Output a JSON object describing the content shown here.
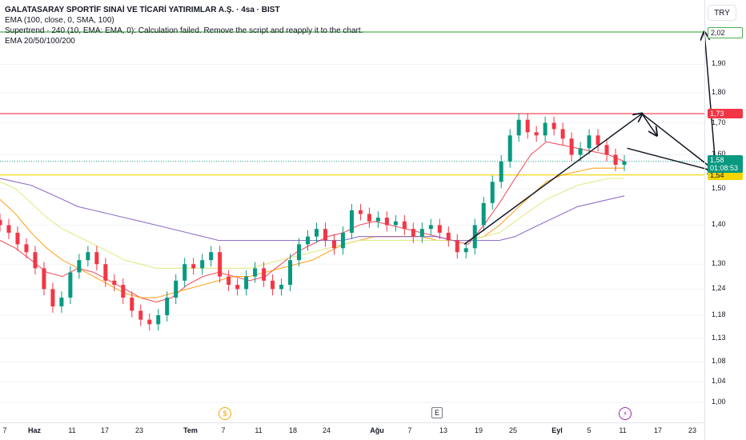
{
  "header": {
    "title": "GALATASARAY SPORTİF SINAİ VE TİCARİ YATIRIMLAR A.Ş. · 4sa · BIST",
    "indicator_ema": "EMA (100, close, 0, SMA, 100)",
    "indicator_supertrend": "Supertrend · 240 (10, EMA: EMA, 0): Calculation failed. Remove the script and reapply it to the chart.",
    "indicator_ema_multi": "EMA 20/50/100/200",
    "currency": "TRY"
  },
  "chart_data": {
    "type": "line",
    "y_axis": {
      "scale": "log",
      "ylim": [
        0.98,
        2.05
      ],
      "ticks": [
        "2,02",
        "1,90",
        "1,80",
        "1,70",
        "1,60",
        "1,50",
        "1,40",
        "1,30",
        "1,24",
        "1,18",
        "1,13",
        "1,08",
        "1,04",
        "1,00"
      ]
    },
    "x_axis": {
      "ticks": [
        {
          "label": "7",
          "bold": false
        },
        {
          "label": "Haz",
          "bold": true
        },
        {
          "label": "11",
          "bold": false
        },
        {
          "label": "17",
          "bold": false
        },
        {
          "label": "23",
          "bold": false
        },
        {
          "label": "Tem",
          "bold": true
        },
        {
          "label": "7",
          "bold": false
        },
        {
          "label": "11",
          "bold": false
        },
        {
          "label": "18",
          "bold": false
        },
        {
          "label": "24",
          "bold": false
        },
        {
          "label": "Ağu",
          "bold": true
        },
        {
          "label": "7",
          "bold": false
        },
        {
          "label": "13",
          "bold": false
        },
        {
          "label": "19",
          "bold": false
        },
        {
          "label": "25",
          "bold": false
        },
        {
          "label": "Eyl",
          "bold": true
        },
        {
          "label": "5",
          "bold": false
        },
        {
          "label": "11",
          "bold": false
        },
        {
          "label": "17",
          "bold": false
        },
        {
          "label": "23",
          "bold": false
        }
      ]
    },
    "price_levels": [
      {
        "value": 2.02,
        "label": "2,02",
        "color": "#4caf50"
      },
      {
        "value": 1.73,
        "label": "1,73",
        "color": "#f23645"
      },
      {
        "value": 1.54,
        "label": "1,54",
        "color": "#f5d500"
      }
    ],
    "last_price": {
      "value": 1.58,
      "label": "1,58",
      "countdown": "01:08:53",
      "color": "#089981"
    },
    "series": [
      {
        "name": "EMA 20",
        "color": "#f23645",
        "values": [
          1.36,
          1.34,
          1.31,
          1.28,
          1.27,
          1.29,
          1.28,
          1.26,
          1.24,
          1.22,
          1.21,
          1.22,
          1.25,
          1.27,
          1.28,
          1.27,
          1.26,
          1.27,
          1.3,
          1.33,
          1.35,
          1.37,
          1.38,
          1.4,
          1.41,
          1.4,
          1.39,
          1.38,
          1.37,
          1.36,
          1.35,
          1.4,
          1.46,
          1.53,
          1.6,
          1.64,
          1.63,
          1.62,
          1.61,
          1.6,
          1.58
        ]
      },
      {
        "name": "EMA 50",
        "color": "#ff9800",
        "values": [
          1.47,
          1.43,
          1.38,
          1.34,
          1.31,
          1.29,
          1.27,
          1.25,
          1.23,
          1.22,
          1.22,
          1.23,
          1.24,
          1.25,
          1.26,
          1.27,
          1.27,
          1.28,
          1.29,
          1.3,
          1.31,
          1.33,
          1.35,
          1.36,
          1.37,
          1.37,
          1.37,
          1.37,
          1.36,
          1.36,
          1.36,
          1.37,
          1.4,
          1.44,
          1.48,
          1.52,
          1.54,
          1.55,
          1.56,
          1.56,
          1.56
        ]
      },
      {
        "name": "EMA 100",
        "color": "#dce775",
        "values": [
          1.52,
          1.5,
          1.46,
          1.42,
          1.39,
          1.37,
          1.35,
          1.33,
          1.31,
          1.3,
          1.29,
          1.29,
          1.29,
          1.29,
          1.29,
          1.29,
          1.29,
          1.3,
          1.31,
          1.32,
          1.33,
          1.34,
          1.35,
          1.36,
          1.36,
          1.36,
          1.36,
          1.36,
          1.36,
          1.36,
          1.36,
          1.37,
          1.38,
          1.41,
          1.44,
          1.47,
          1.49,
          1.51,
          1.52,
          1.53,
          1.53
        ]
      },
      {
        "name": "EMA 200",
        "color": "#7e57c2",
        "values": [
          1.53,
          1.52,
          1.51,
          1.49,
          1.47,
          1.45,
          1.44,
          1.43,
          1.42,
          1.41,
          1.4,
          1.39,
          1.38,
          1.37,
          1.36,
          1.36,
          1.36,
          1.36,
          1.36,
          1.36,
          1.36,
          1.36,
          1.36,
          1.37,
          1.37,
          1.37,
          1.37,
          1.37,
          1.37,
          1.36,
          1.36,
          1.36,
          1.36,
          1.37,
          1.39,
          1.41,
          1.43,
          1.45,
          1.46,
          1.47,
          1.48
        ]
      }
    ],
    "candles": {
      "close": [
        1.4,
        1.38,
        1.35,
        1.33,
        1.29,
        1.24,
        1.2,
        1.22,
        1.28,
        1.31,
        1.33,
        1.3,
        1.26,
        1.25,
        1.22,
        1.19,
        1.17,
        1.16,
        1.18,
        1.22,
        1.26,
        1.3,
        1.29,
        1.31,
        1.33,
        1.27,
        1.25,
        1.24,
        1.27,
        1.29,
        1.26,
        1.24,
        1.25,
        1.31,
        1.35,
        1.37,
        1.39,
        1.36,
        1.34,
        1.38,
        1.44,
        1.43,
        1.41,
        1.42,
        1.4,
        1.41,
        1.39,
        1.37,
        1.39,
        1.4,
        1.38,
        1.36,
        1.33,
        1.34,
        1.4,
        1.46,
        1.52,
        1.58,
        1.66,
        1.71,
        1.67,
        1.66,
        1.7,
        1.68,
        1.65,
        1.6,
        1.62,
        1.66,
        1.63,
        1.6,
        1.57,
        1.58
      ],
      "up_color": "#089981",
      "down_color": "#f23645"
    },
    "drawings": [
      {
        "type": "arrow",
        "from": [
          13,
          1.35
        ],
        "to": [
          25,
          1.73
        ]
      },
      {
        "type": "arrow",
        "from": [
          25,
          1.73
        ],
        "to": [
          26,
          1.66
        ]
      },
      {
        "type": "arrow",
        "from": [
          25,
          1.73
        ],
        "to": [
          30,
          1.55
        ]
      },
      {
        "type": "arrow",
        "from": [
          24,
          1.62
        ],
        "to": [
          30,
          1.55
        ]
      },
      {
        "type": "arrow",
        "from": [
          30,
          1.55
        ],
        "to": [
          33,
          2.02
        ]
      }
    ],
    "events": [
      {
        "kind": "dividend",
        "symbol": "$",
        "date_label": "Tem"
      },
      {
        "kind": "earnings",
        "symbol": "E",
        "date_label": "13"
      },
      {
        "kind": "split",
        "symbol": "⚡",
        "date_label": "11"
      }
    ]
  }
}
